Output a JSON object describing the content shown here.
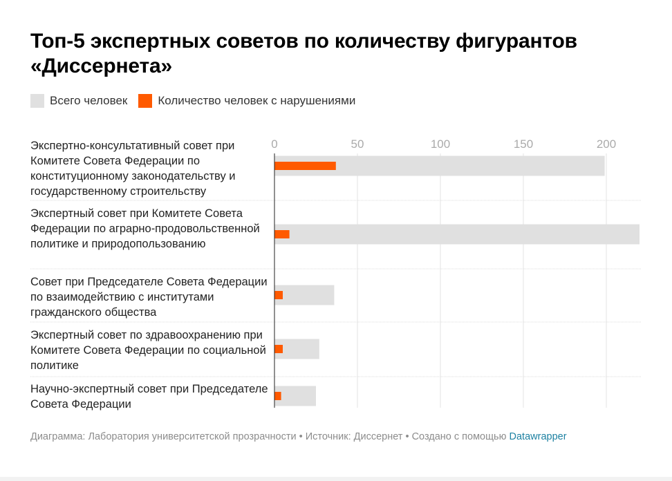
{
  "title": "Топ-5 экспертных советов по количеству фигурантов «Диссернета»",
  "legend": [
    {
      "label": "Всего человек",
      "color": "#e0e0e0"
    },
    {
      "label": "Количество человек с нарушениями",
      "color": "#ff5a00"
    }
  ],
  "footer": {
    "text": "Диаграмма: Лаборатория университетской прозрачности • Источник: Диссернет • Создано с помощью ",
    "brand": "Datawrapper"
  },
  "chart_data": {
    "type": "bar",
    "orientation": "horizontal",
    "categories": [
      "Экспертно-консультативный совет при Комитете Совета Федерации по конституционному законодательству и государственному строительству",
      "Экспертный совет при Комитете Совета Федерации по аграрно-продовольственной политике и природопользованию",
      "Совет при Председателе Совета Федерации по взаимодействию с институтами гражданского общества",
      "Экспертный совет по здравоохранению при Комитете Совета Федерации по социальной политике",
      "Научно-экспертный совет при Председателе Совета Федерации"
    ],
    "series": [
      {
        "name": "Всего человек",
        "color": "#e0e0e0",
        "values": [
          199,
          220,
          36,
          27,
          25
        ]
      },
      {
        "name": "Количество человек с нарушениями",
        "color": "#ff5a00",
        "values": [
          37,
          9,
          5,
          5,
          4
        ]
      }
    ],
    "xlim": [
      0,
      220
    ],
    "xticks": [
      "0",
      "50",
      "100",
      "150",
      "200"
    ],
    "xtick_values": [
      0,
      50,
      100,
      150,
      200
    ],
    "grid": true,
    "legend_position": "top-left"
  }
}
